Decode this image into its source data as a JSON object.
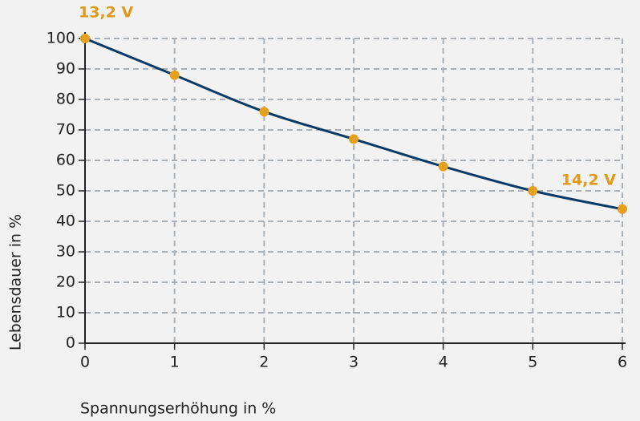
{
  "chart_data": {
    "type": "line",
    "x": [
      0,
      1,
      2,
      3,
      4,
      5,
      6
    ],
    "series": [
      {
        "name": "Lebensdauer",
        "color": "#0b3a66",
        "marker_color": "#e6a01f",
        "values": [
          100,
          88,
          76,
          67,
          58,
          50,
          44
        ]
      }
    ],
    "xlim": [
      0,
      6
    ],
    "xticks": [
      0,
      1,
      2,
      3,
      4,
      5,
      6
    ],
    "ylim": [
      0,
      100
    ],
    "yticks": [
      0,
      10,
      20,
      30,
      40,
      50,
      60,
      70,
      80,
      90,
      100
    ],
    "xlabel": "Spannungserhöhung in %",
    "ylabel": "Lebensdauer in %",
    "annotations": [
      "13,2 V",
      "14,2 V"
    ],
    "grid": true
  }
}
